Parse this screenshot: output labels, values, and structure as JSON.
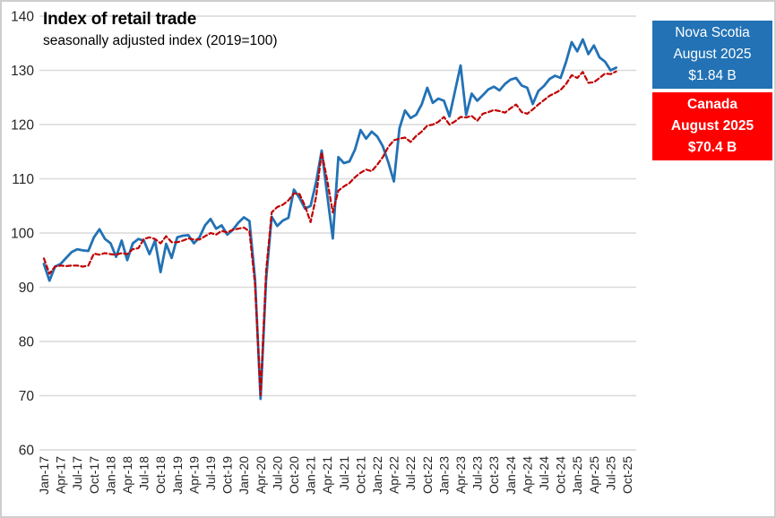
{
  "chart_data": {
    "type": "line",
    "title": "Index of retail trade",
    "subtitle": "seasonally adjusted index (2019=100)",
    "ylim": [
      60,
      140
    ],
    "y_ticks": [
      60,
      70,
      80,
      90,
      100,
      110,
      120,
      130,
      140
    ],
    "x_tick_labels": [
      "Jan-17",
      "Apr-17",
      "Jul-17",
      "Oct-17",
      "Jan-18",
      "Apr-18",
      "Jul-18",
      "Oct-18",
      "Jan-19",
      "Apr-19",
      "Jul-19",
      "Oct-19",
      "Jan-20",
      "Apr-20",
      "Jul-20",
      "Oct-20",
      "Jan-21",
      "Apr-21",
      "Jul-21",
      "Oct-21",
      "Jan-22",
      "Apr-22",
      "Jul-22",
      "Oct-22",
      "Jan-23",
      "Apr-23",
      "Jul-23",
      "Oct-23",
      "Jan-24",
      "Apr-24",
      "Jul-24",
      "Oct-24",
      "Jan-25",
      "Apr-25",
      "Jul-25",
      "Oct-25"
    ],
    "grid": "horizontal",
    "months": [
      "Jan-17",
      "Feb-17",
      "Mar-17",
      "Apr-17",
      "May-17",
      "Jun-17",
      "Jul-17",
      "Aug-17",
      "Sep-17",
      "Oct-17",
      "Nov-17",
      "Dec-17",
      "Jan-18",
      "Feb-18",
      "Mar-18",
      "Apr-18",
      "May-18",
      "Jun-18",
      "Jul-18",
      "Aug-18",
      "Sep-18",
      "Oct-18",
      "Nov-18",
      "Dec-18",
      "Jan-19",
      "Feb-19",
      "Mar-19",
      "Apr-19",
      "May-19",
      "Jun-19",
      "Jul-19",
      "Aug-19",
      "Sep-19",
      "Oct-19",
      "Nov-19",
      "Dec-19",
      "Jan-20",
      "Feb-20",
      "Mar-20",
      "Apr-20",
      "May-20",
      "Jun-20",
      "Jul-20",
      "Aug-20",
      "Sep-20",
      "Oct-20",
      "Nov-20",
      "Dec-20",
      "Jan-21",
      "Feb-21",
      "Mar-21",
      "Apr-21",
      "May-21",
      "Jun-21",
      "Jul-21",
      "Aug-21",
      "Sep-21",
      "Oct-21",
      "Nov-21",
      "Dec-21",
      "Jan-22",
      "Feb-22",
      "Mar-22",
      "Apr-22",
      "May-22",
      "Jun-22",
      "Jul-22",
      "Aug-22",
      "Sep-22",
      "Oct-22",
      "Nov-22",
      "Dec-22",
      "Jan-23",
      "Feb-23",
      "Mar-23",
      "Apr-23",
      "May-23",
      "Jun-23",
      "Jul-23",
      "Aug-23",
      "Sep-23",
      "Oct-23",
      "Nov-23",
      "Dec-23",
      "Jan-24",
      "Feb-24",
      "Mar-24",
      "Apr-24",
      "May-24",
      "Jun-24",
      "Jul-24",
      "Aug-24",
      "Sep-24",
      "Oct-24",
      "Nov-24",
      "Dec-24",
      "Jan-25",
      "Feb-25",
      "Mar-25",
      "Apr-25",
      "May-25",
      "Jun-25",
      "Jul-25",
      "Aug-25"
    ],
    "series": [
      {
        "name": "Nova Scotia",
        "color": "#2272B5",
        "style": "solid",
        "values": [
          94.3,
          91.2,
          93.8,
          94.3,
          95.4,
          96.5,
          97.0,
          96.8,
          96.7,
          99.2,
          100.7,
          98.9,
          98.1,
          95.6,
          98.6,
          95.0,
          98.1,
          98.9,
          98.6,
          96.1,
          98.6,
          92.8,
          98.0,
          95.4,
          99.2,
          99.5,
          99.6,
          98.1,
          99.2,
          101.4,
          102.6,
          100.8,
          101.4,
          99.7,
          100.6,
          101.9,
          102.9,
          102.2,
          91.5,
          69.4,
          91.5,
          103.0,
          101.3,
          102.3,
          102.8,
          108.0,
          106.5,
          104.5,
          105.0,
          109.4,
          115.2,
          107.0,
          99.0,
          114.0,
          112.9,
          113.2,
          115.4,
          119.0,
          117.4,
          118.7,
          117.8,
          116.0,
          113.0,
          109.5,
          119.3,
          122.6,
          121.2,
          121.8,
          123.7,
          126.8,
          124.0,
          124.8,
          124.4,
          121.5,
          126.2,
          130.9,
          121.8,
          125.7,
          124.4,
          125.4,
          126.5,
          127.0,
          126.3,
          127.5,
          128.3,
          128.6,
          127.2,
          126.8,
          123.8,
          126.2,
          127.1,
          128.4,
          129.0,
          128.6,
          131.6,
          135.2,
          133.5,
          135.7,
          133.0,
          134.6,
          132.4,
          131.6,
          130.0,
          130.5
        ]
      },
      {
        "name": "Canada",
        "color": "#C00000",
        "style": "dashed",
        "values": [
          95.3,
          92.5,
          93.8,
          94.0,
          93.9,
          94.0,
          94.0,
          93.8,
          94.0,
          96.2,
          96.0,
          96.3,
          96.1,
          96.0,
          96.3,
          96.1,
          97.0,
          97.2,
          98.9,
          99.2,
          98.9,
          98.1,
          99.4,
          98.3,
          98.3,
          98.6,
          99.0,
          98.8,
          98.8,
          99.4,
          100.0,
          99.7,
          100.4,
          100.1,
          100.6,
          100.8,
          101.0,
          100.3,
          90.5,
          70.1,
          93.0,
          103.8,
          104.8,
          105.2,
          106.0,
          107.3,
          107.2,
          105.0,
          102.0,
          106.7,
          114.9,
          109.7,
          103.8,
          107.8,
          108.6,
          109.2,
          110.3,
          111.1,
          111.7,
          111.4,
          112.6,
          114.0,
          115.9,
          117.1,
          117.4,
          117.6,
          116.8,
          117.9,
          118.7,
          119.8,
          120.0,
          120.5,
          121.4,
          120.0,
          120.6,
          121.4,
          121.3,
          121.6,
          120.7,
          122.0,
          122.3,
          122.7,
          122.5,
          122.2,
          123.0,
          123.7,
          122.3,
          122.0,
          122.8,
          123.7,
          124.5,
          125.3,
          125.8,
          126.4,
          127.5,
          129.1,
          128.6,
          129.7,
          127.7,
          127.8,
          128.6,
          129.4,
          129.3,
          129.8
        ]
      }
    ],
    "legend_position": "right"
  },
  "legend": {
    "nova_scotia": {
      "region": "Nova Scotia",
      "period": "August 2025",
      "value": "$1.84 B",
      "bg": "#2272B5"
    },
    "canada": {
      "region": "Canada",
      "period": "August 2025",
      "value": "$70.4 B",
      "bg": "#FF0000"
    }
  },
  "colors": {
    "gridline": "#D9D9D9",
    "axis_text": "#262626",
    "frame_border": "#CFCDCD"
  }
}
